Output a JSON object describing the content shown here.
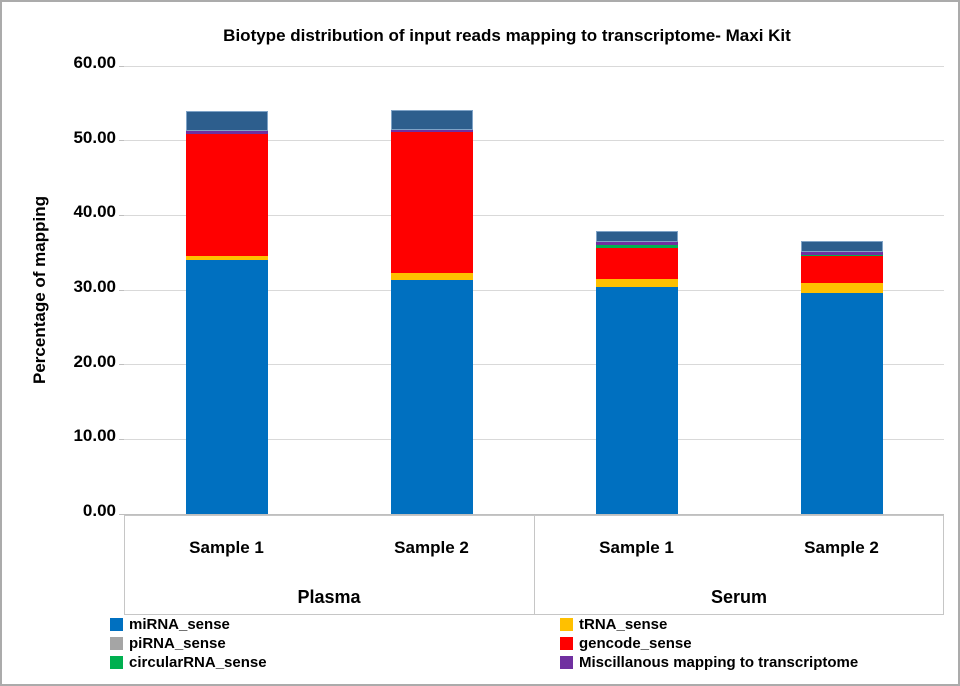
{
  "title": "Biotype distribution of input reads mapping to transcriptome- Maxi Kit",
  "chart_data": {
    "type": "bar",
    "stacked": true,
    "title": "Biotype distribution of input reads mapping to transcriptome- Maxi Kit",
    "xlabel": "",
    "ylabel": "Percentage of mapping",
    "ylim": [
      0,
      60
    ],
    "ytick_step": 10,
    "ytick_format_decimals": 2,
    "grid": true,
    "legend_position": "bottom",
    "categories": [
      "Sample 1",
      "Sample 2",
      "Sample 1",
      "Sample 2"
    ],
    "groups": [
      {
        "label": "Plasma",
        "span": [
          0,
          1
        ]
      },
      {
        "label": "Serum",
        "span": [
          2,
          3
        ]
      }
    ],
    "series": [
      {
        "name": "miRNA_sense",
        "color": "#0070c0",
        "values": [
          34.0,
          31.4,
          30.4,
          29.6
        ]
      },
      {
        "name": "tRNA_sense",
        "color": "#ffc000",
        "values": [
          0.5,
          0.9,
          1.1,
          1.3
        ]
      },
      {
        "name": "piRNA_sense",
        "color": "#a5a5a5",
        "values": [
          0,
          0,
          0,
          0
        ]
      },
      {
        "name": "gencode_sense",
        "color": "#ff0000",
        "values": [
          16.4,
          18.8,
          4.1,
          3.7
        ]
      },
      {
        "name": "circularRNA_sense",
        "color": "#00b050",
        "values": [
          0,
          0,
          0.4,
          0.1
        ]
      },
      {
        "name": "Miscillanous mapping to transcriptome",
        "color": "#7030a0",
        "values": [
          0.4,
          0.3,
          0.4,
          0.4
        ]
      },
      {
        "name": "unlabeled_top_segment",
        "color": "#2d5e8d",
        "values": [
          2.7,
          2.7,
          1.5,
          1.5
        ]
      }
    ],
    "bar_totals": [
      54.0,
      54.1,
      37.9,
      36.6
    ]
  },
  "legend": {
    "items": [
      {
        "label": "miRNA_sense",
        "color": "#0070c0",
        "col": 0
      },
      {
        "label": "piRNA_sense",
        "color": "#a5a5a5",
        "col": 0
      },
      {
        "label": "circularRNA_sense",
        "color": "#00b050",
        "col": 0
      },
      {
        "label": "tRNA_sense",
        "color": "#ffc000",
        "col": 1
      },
      {
        "label": "gencode_sense",
        "color": "#ff0000",
        "col": 1
      },
      {
        "label": "Miscillanous mapping to transcriptome",
        "color": "#7030a0",
        "col": 1
      }
    ]
  },
  "colors": {
    "gridline": "#d9d9d9",
    "axis": "#bfbfbf",
    "category_box_border": "#c6c6c6",
    "outer_border": "#ababab",
    "unlabeled_segment_outline": "#7fa3c7"
  }
}
